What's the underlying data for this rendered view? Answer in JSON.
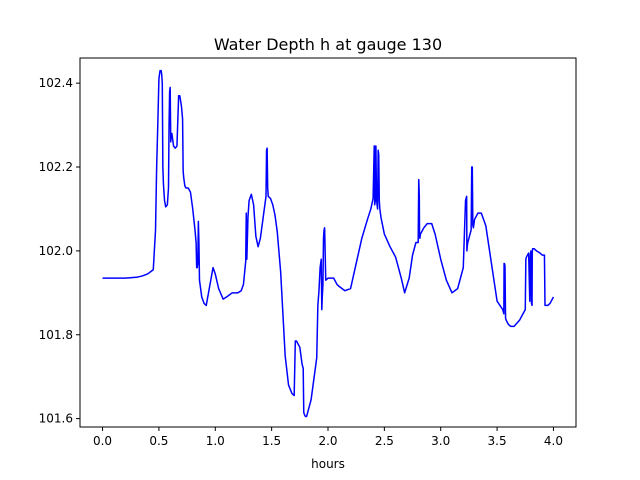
{
  "chart_data": {
    "type": "line",
    "title": "Water Depth h at gauge 130",
    "xlabel": "hours",
    "ylabel": "",
    "xlim": [
      -0.2,
      4.2
    ],
    "ylim": [
      101.58,
      102.46
    ],
    "xticks": [
      0.0,
      0.5,
      1.0,
      1.5,
      2.0,
      2.5,
      3.0,
      3.5,
      4.0
    ],
    "xtick_labels": [
      "0.0",
      "0.5",
      "1.0",
      "1.5",
      "2.0",
      "2.5",
      "3.0",
      "3.5",
      "4.0"
    ],
    "yticks": [
      101.6,
      101.8,
      102.0,
      102.2,
      102.4
    ],
    "ytick_labels": [
      "101.6",
      "101.8",
      "102.0",
      "102.2",
      "102.4"
    ],
    "grid": false,
    "legend": "none",
    "colors": {
      "line": "#0000ff",
      "axes": "#000000",
      "background": "#ffffff"
    },
    "series": [
      {
        "x": [
          0.0,
          0.1,
          0.2,
          0.3,
          0.35,
          0.4,
          0.45,
          0.47,
          0.48,
          0.49,
          0.5,
          0.505,
          0.51,
          0.52,
          0.525,
          0.53,
          0.535,
          0.54,
          0.55,
          0.56,
          0.575,
          0.585,
          0.59,
          0.595,
          0.6,
          0.605,
          0.61,
          0.615,
          0.62,
          0.63,
          0.645,
          0.66,
          0.675,
          0.685,
          0.7,
          0.705,
          0.71,
          0.715,
          0.72,
          0.725,
          0.73,
          0.74,
          0.76,
          0.78,
          0.8,
          0.82,
          0.83,
          0.835,
          0.84,
          0.845,
          0.85,
          0.855,
          0.86,
          0.865,
          0.87,
          0.88,
          0.9,
          0.92,
          0.95,
          0.98,
          1.0,
          1.03,
          1.07,
          1.1,
          1.15,
          1.2,
          1.23,
          1.25,
          1.27,
          1.275,
          1.28,
          1.29,
          1.3,
          1.32,
          1.34,
          1.36,
          1.38,
          1.4,
          1.43,
          1.45,
          1.455,
          1.46,
          1.465,
          1.47,
          1.49,
          1.51,
          1.53,
          1.55,
          1.58,
          1.6,
          1.62,
          1.65,
          1.68,
          1.7,
          1.71,
          1.72,
          1.75,
          1.77,
          1.78,
          1.785,
          1.79,
          1.8,
          1.81,
          1.85,
          1.88,
          1.9,
          1.91,
          1.92,
          1.93,
          1.94,
          1.945,
          1.95,
          1.955,
          1.96,
          1.965,
          1.97,
          1.98,
          2.0,
          2.05,
          2.08,
          2.1,
          2.15,
          2.2,
          2.25,
          2.3,
          2.35,
          2.38,
          2.4,
          2.41,
          2.412,
          2.414,
          2.42,
          2.425,
          2.43,
          2.435,
          2.44,
          2.445,
          2.45,
          2.455,
          2.46,
          2.47,
          2.5,
          2.55,
          2.6,
          2.65,
          2.68,
          2.72,
          2.75,
          2.78,
          2.79,
          2.8,
          2.805,
          2.81,
          2.812,
          2.815,
          2.82,
          2.85,
          2.88,
          2.92,
          2.95,
          3.0,
          3.05,
          3.1,
          3.15,
          3.2,
          3.22,
          3.23,
          3.232,
          3.235,
          3.24,
          3.26,
          3.27,
          3.275,
          3.28,
          3.285,
          3.29,
          3.3,
          3.33,
          3.36,
          3.4,
          3.45,
          3.5,
          3.55,
          3.56,
          3.562,
          3.565,
          3.57,
          3.575,
          3.58,
          3.6,
          3.62,
          3.65,
          3.7,
          3.73,
          3.75,
          3.755,
          3.76,
          3.77,
          3.78,
          3.79,
          3.795,
          3.8,
          3.805,
          3.81,
          3.812,
          3.815,
          3.82,
          3.83,
          3.85,
          3.88,
          3.9,
          3.92,
          3.925,
          3.93,
          3.95,
          3.97,
          4.0
        ],
        "y": [
          101.935,
          101.935,
          101.935,
          101.937,
          101.94,
          101.945,
          101.955,
          102.05,
          102.2,
          102.3,
          102.41,
          102.42,
          102.43,
          102.43,
          102.42,
          102.4,
          102.2,
          102.16,
          102.12,
          102.105,
          102.11,
          102.15,
          102.3,
          102.38,
          102.39,
          102.26,
          102.28,
          102.28,
          102.27,
          102.25,
          102.245,
          102.25,
          102.37,
          102.37,
          102.345,
          102.33,
          102.315,
          102.19,
          102.175,
          102.165,
          102.155,
          102.15,
          102.15,
          102.14,
          102.1,
          102.05,
          102.02,
          101.96,
          101.96,
          101.97,
          102.07,
          102.02,
          101.93,
          101.92,
          101.91,
          101.89,
          101.875,
          101.87,
          101.915,
          101.96,
          101.945,
          101.91,
          101.885,
          101.89,
          101.9,
          101.9,
          101.905,
          101.92,
          101.975,
          102.09,
          101.98,
          102.08,
          102.12,
          102.135,
          102.11,
          102.035,
          102.01,
          102.03,
          102.09,
          102.13,
          102.24,
          102.245,
          102.15,
          102.13,
          102.125,
          102.11,
          102.085,
          102.045,
          101.95,
          101.85,
          101.75,
          101.68,
          101.66,
          101.655,
          101.785,
          101.785,
          101.77,
          101.73,
          101.72,
          101.615,
          101.61,
          101.605,
          101.605,
          101.645,
          101.705,
          101.745,
          101.87,
          101.905,
          101.96,
          101.98,
          101.86,
          101.895,
          101.92,
          102.03,
          102.05,
          102.055,
          101.93,
          101.935,
          101.935,
          101.92,
          101.915,
          101.905,
          101.91,
          101.97,
          102.03,
          102.075,
          102.1,
          102.125,
          102.25,
          102.25,
          102.11,
          102.12,
          102.25,
          102.13,
          102.11,
          102.1,
          102.24,
          102.23,
          102.12,
          102.1,
          102.08,
          102.04,
          102.01,
          101.985,
          101.935,
          101.9,
          101.935,
          101.99,
          102.02,
          102.02,
          102.02,
          102.17,
          102.13,
          102.04,
          102.03,
          102.04,
          102.055,
          102.065,
          102.065,
          102.04,
          101.98,
          101.93,
          101.9,
          101.91,
          101.96,
          102.12,
          102.13,
          102.0,
          102.01,
          102.02,
          102.04,
          102.05,
          102.2,
          102.2,
          102.06,
          102.055,
          102.075,
          102.09,
          102.09,
          102.06,
          101.97,
          101.88,
          101.86,
          101.85,
          101.97,
          101.97,
          101.965,
          101.84,
          101.835,
          101.825,
          101.82,
          101.82,
          101.835,
          101.85,
          101.86,
          101.98,
          101.985,
          101.99,
          101.995,
          101.88,
          101.99,
          102.0,
          101.875,
          101.87,
          101.995,
          102.005,
          102.005,
          102.005,
          102.0,
          101.995,
          101.99,
          101.99,
          101.87,
          101.87,
          101.87,
          101.875,
          101.89
        ]
      }
    ]
  }
}
